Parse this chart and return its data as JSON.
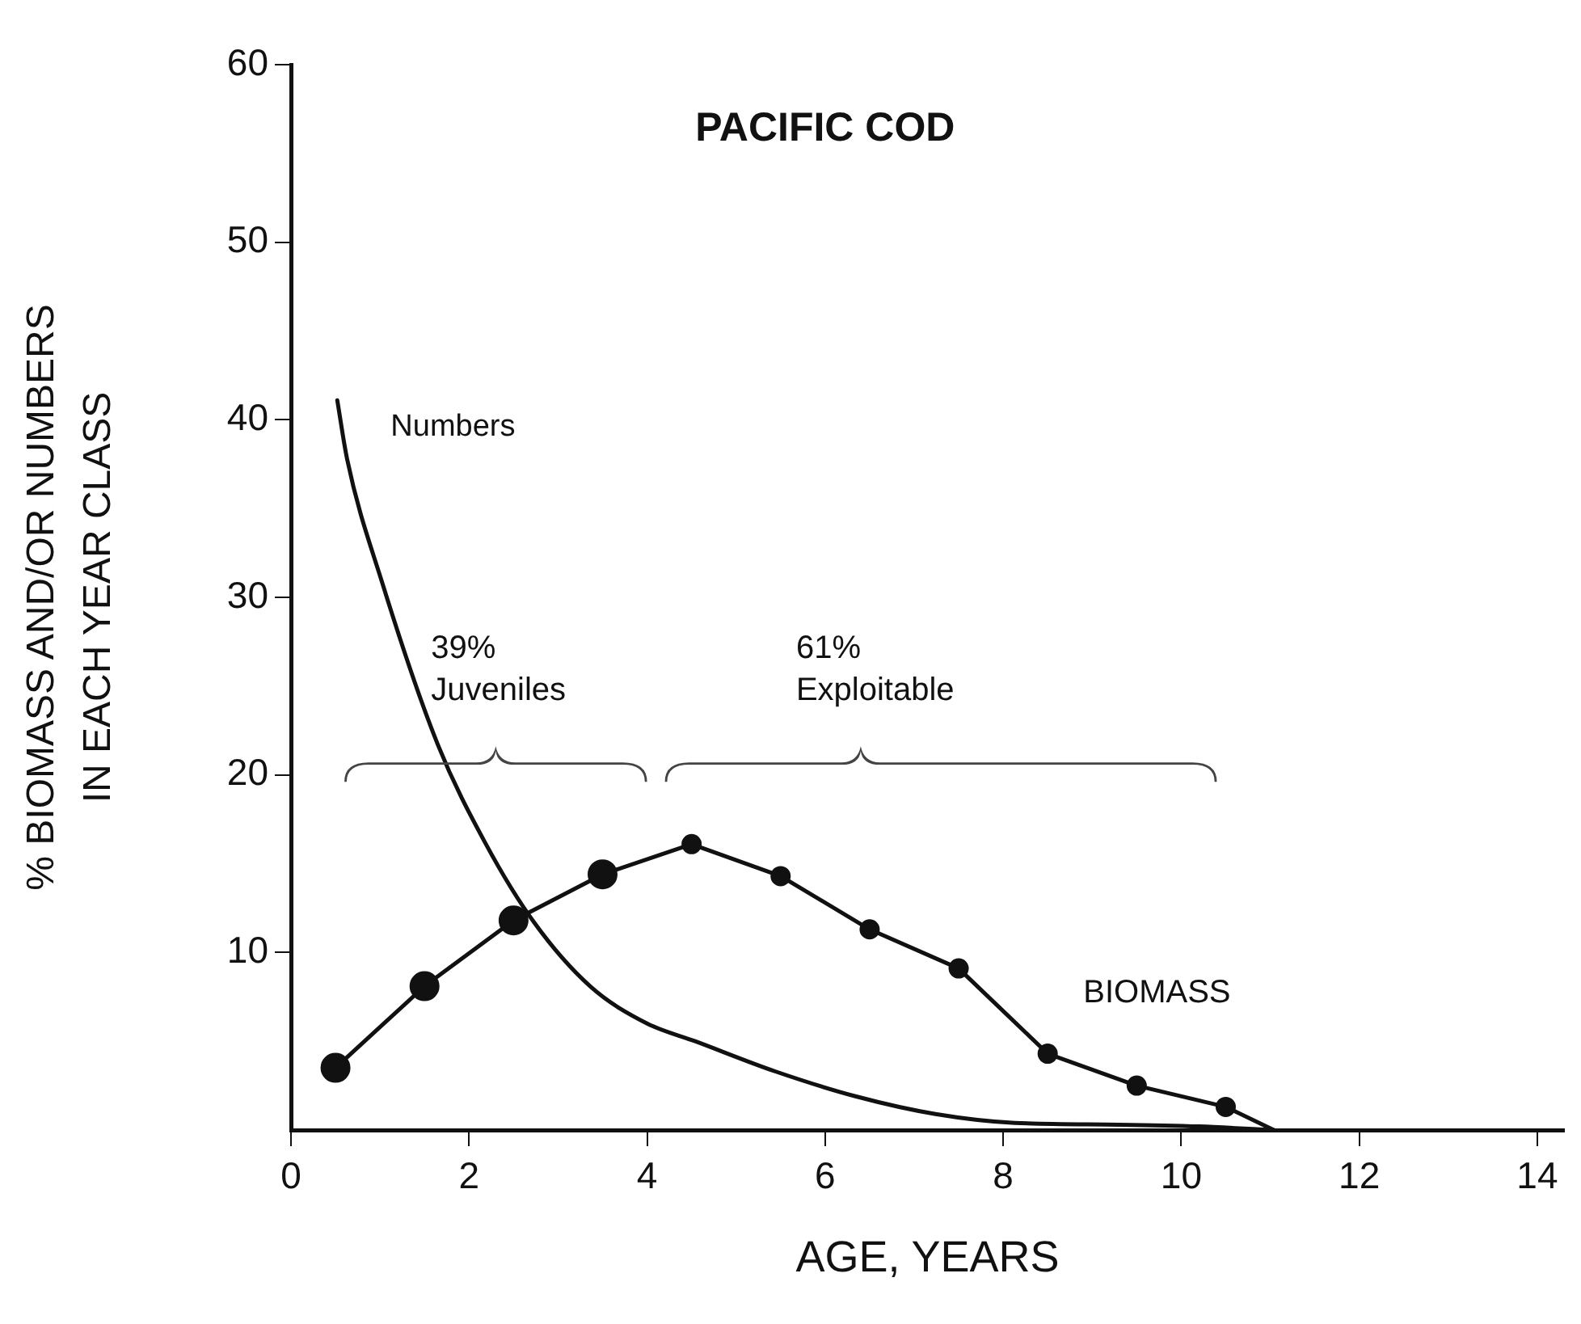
{
  "chart_data": {
    "type": "line",
    "title": "PACIFIC COD",
    "xlabel": "AGE, YEARS",
    "ylabel": "% BIOMASS AND/OR NUMBERS\nIN EACH YEAR CLASS",
    "series": [
      {
        "name": "Numbers",
        "color": "#111111",
        "marker": "none",
        "x": [
          0.52,
          0.63,
          1.02,
          1.65,
          2.19,
          2.73,
          3.36,
          4.0,
          4.54,
          5.44,
          6.34,
          7.24,
          8.13,
          9.3,
          10.2,
          11.04
        ],
        "values": [
          41.1,
          37.8,
          30.9,
          21.7,
          16.1,
          11.7,
          8.1,
          6.0,
          5.0,
          3.3,
          1.9,
          0.9,
          0.4,
          0.3,
          0.2,
          0
        ]
      },
      {
        "name": "BIOMASS",
        "color": "#111111",
        "marker": "circle",
        "x": [
          0.5,
          1.5,
          2.5,
          3.5,
          4.5,
          5.5,
          6.5,
          7.5,
          8.5,
          9.5,
          10.5,
          11.04
        ],
        "values": [
          3.5,
          8.1,
          11.8,
          14.4,
          16.1,
          14.3,
          11.3,
          9.1,
          4.3,
          2.5,
          1.3,
          0
        ]
      }
    ],
    "annotations": [
      "39%\nJuveniles",
      "61%\nExploitable"
    ],
    "xlim": [
      0,
      14.3
    ],
    "xticks": [
      0,
      2,
      4,
      6,
      8,
      10,
      12,
      14
    ],
    "ylim": [
      0,
      60
    ],
    "yticks": [
      10,
      20,
      30,
      40,
      50,
      60
    ],
    "grid": false,
    "legend": false
  }
}
